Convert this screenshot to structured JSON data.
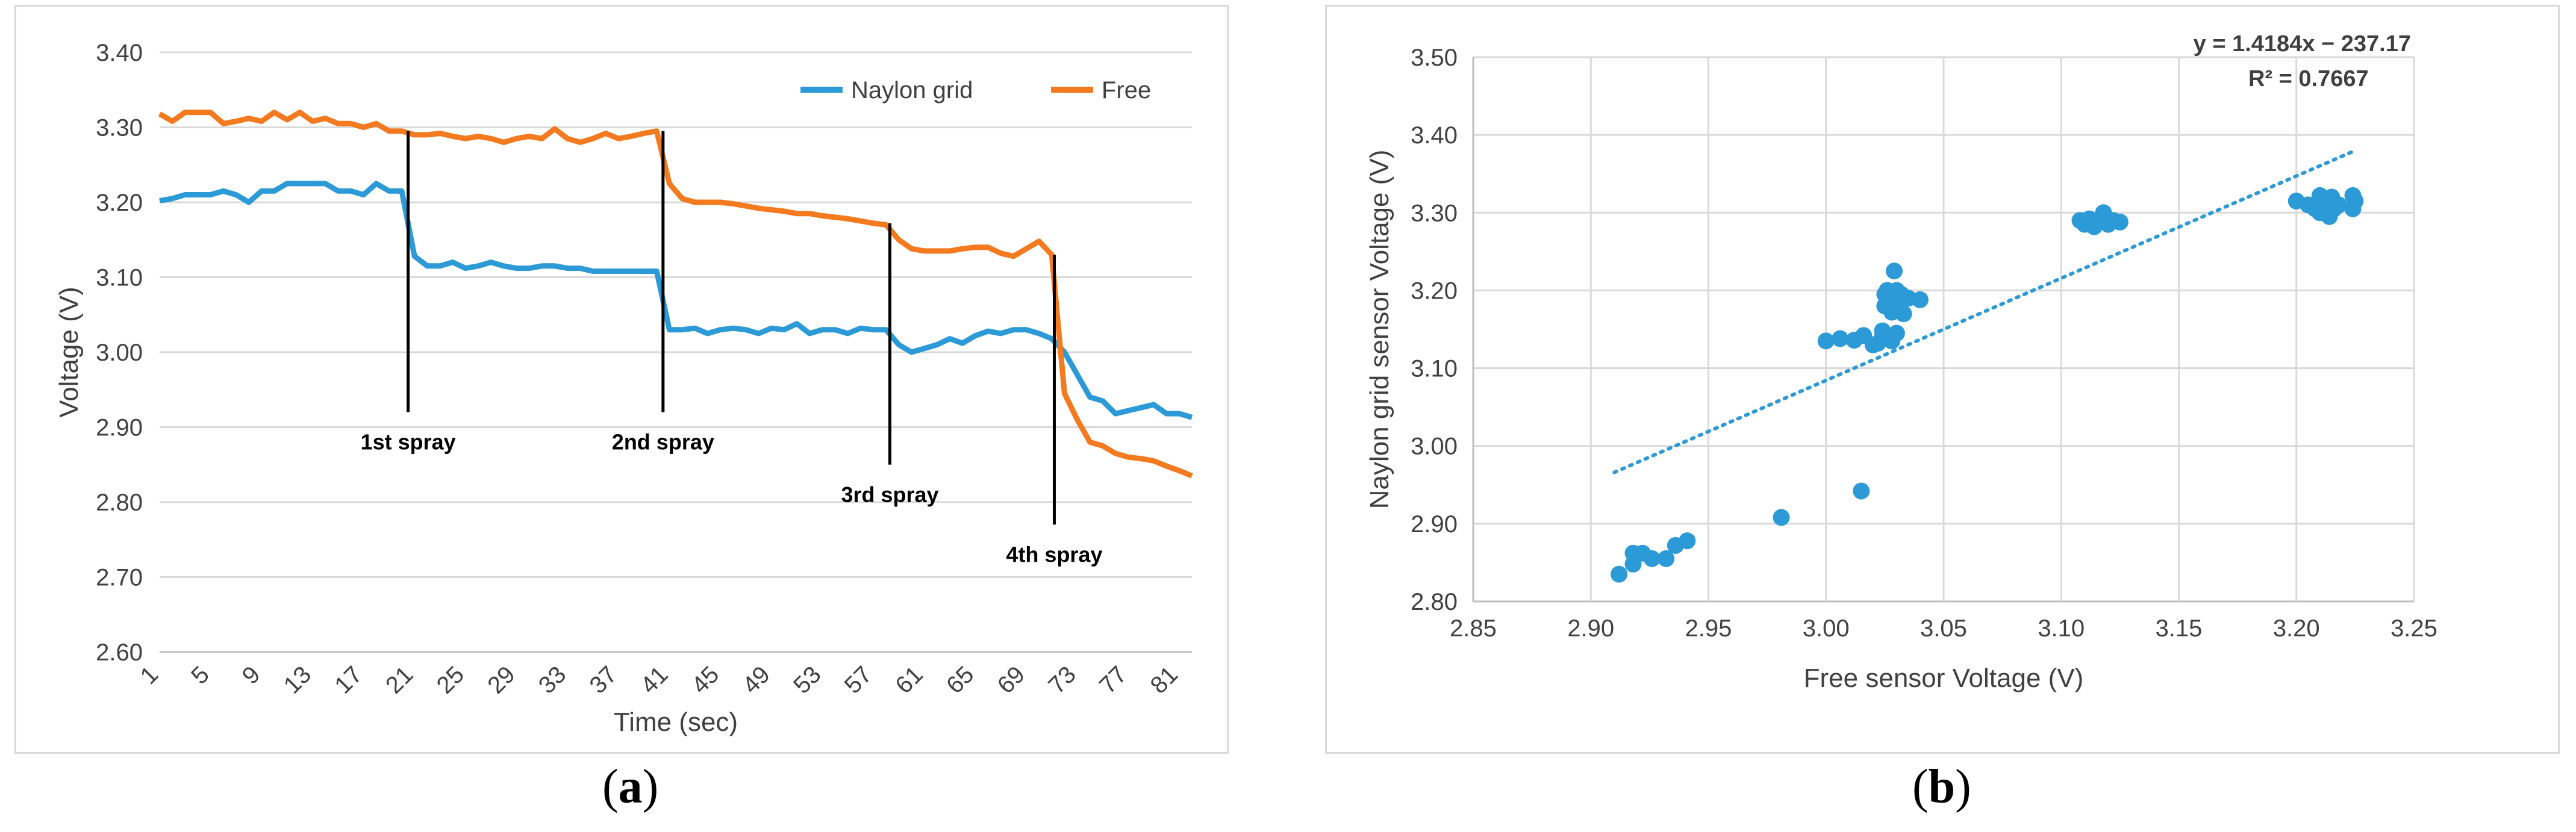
{
  "captions": {
    "a_open": "(",
    "a_letter": "a",
    "a_close": ")",
    "b_open": "(",
    "b_letter": "b",
    "b_close": ")"
  },
  "colors": {
    "naylon": "#2b9ad6",
    "free": "#f47a20",
    "grid": "#d9d9d9",
    "axis": "#bfbfbf",
    "text": "#404040"
  },
  "chart_data": [
    {
      "type": "line",
      "ylabel": "Voltage (V)",
      "xlabel": "Time (sec)",
      "ylim": [
        2.6,
        3.4
      ],
      "yticks": [
        2.6,
        2.7,
        2.8,
        2.9,
        3.0,
        3.1,
        3.2,
        3.3,
        3.4
      ],
      "ytick_labels": [
        "2.60",
        "2.70",
        "2.80",
        "2.90",
        "3.00",
        "3.10",
        "3.20",
        "3.30",
        "3.40"
      ],
      "xlim": [
        1,
        82
      ],
      "xticks": [
        1,
        5,
        9,
        13,
        17,
        21,
        25,
        29,
        33,
        37,
        41,
        45,
        49,
        53,
        57,
        61,
        65,
        69,
        73,
        77,
        81
      ],
      "xtick_labels": [
        "1",
        "5",
        "9",
        "13",
        "17",
        "21",
        "25",
        "29",
        "33",
        "37",
        "41",
        "45",
        "49",
        "53",
        "57",
        "61",
        "65",
        "69",
        "73",
        "77",
        "81"
      ],
      "legend": [
        "Naylon grid",
        "Free"
      ],
      "series": [
        {
          "name": "Naylon grid",
          "values": [
            3.202,
            3.205,
            3.21,
            3.21,
            3.21,
            3.215,
            3.21,
            3.2,
            3.215,
            3.215,
            3.225,
            3.225,
            3.225,
            3.225,
            3.215,
            3.215,
            3.21,
            3.225,
            3.215,
            3.215,
            3.128,
            3.115,
            3.115,
            3.12,
            3.112,
            3.115,
            3.12,
            3.115,
            3.112,
            3.112,
            3.115,
            3.115,
            3.112,
            3.112,
            3.108,
            3.108,
            3.108,
            3.108,
            3.108,
            3.108,
            3.03,
            3.03,
            3.032,
            3.025,
            3.03,
            3.032,
            3.03,
            3.025,
            3.032,
            3.03,
            3.038,
            3.025,
            3.03,
            3.03,
            3.025,
            3.032,
            3.03,
            3.03,
            3.01,
            3.0,
            3.005,
            3.01,
            3.018,
            3.012,
            3.022,
            3.028,
            3.025,
            3.03,
            3.03,
            3.025,
            3.018,
            3.0,
            2.97,
            2.94,
            2.935,
            2.918,
            2.922,
            2.926,
            2.93,
            2.918,
            2.918,
            2.913
          ]
        },
        {
          "name": "Free",
          "values": [
            3.318,
            3.308,
            3.32,
            3.32,
            3.32,
            3.305,
            3.308,
            3.312,
            3.308,
            3.32,
            3.31,
            3.32,
            3.308,
            3.312,
            3.305,
            3.305,
            3.3,
            3.305,
            3.295,
            3.295,
            3.29,
            3.29,
            3.292,
            3.288,
            3.285,
            3.288,
            3.285,
            3.28,
            3.285,
            3.288,
            3.285,
            3.298,
            3.285,
            3.28,
            3.285,
            3.292,
            3.285,
            3.288,
            3.292,
            3.295,
            3.225,
            3.205,
            3.2,
            3.2,
            3.2,
            3.198,
            3.195,
            3.192,
            3.19,
            3.188,
            3.185,
            3.185,
            3.182,
            3.18,
            3.178,
            3.175,
            3.172,
            3.17,
            3.15,
            3.138,
            3.135,
            3.135,
            3.135,
            3.138,
            3.14,
            3.14,
            3.132,
            3.128,
            3.138,
            3.148,
            3.13,
            2.945,
            2.91,
            2.88,
            2.875,
            2.865,
            2.86,
            2.858,
            2.855,
            2.848,
            2.842,
            2.835
          ]
        }
      ],
      "annotations": [
        {
          "label": "1st spray",
          "x": 20.5,
          "y_top": 3.295,
          "y_bottom": 2.92
        },
        {
          "label": "2nd spray",
          "x": 40.5,
          "y_top": 3.295,
          "y_bottom": 2.92
        },
        {
          "label": "3rd spray",
          "x": 58.3,
          "y_top": 3.172,
          "y_bottom": 2.85
        },
        {
          "label": "4th spray",
          "x": 71.2,
          "y_top": 3.13,
          "y_bottom": 2.77
        }
      ]
    },
    {
      "type": "scatter",
      "xlabel": "Free sensor Voltage (V)",
      "ylabel": "Naylon grid sensor Voltage (V)",
      "xlim": [
        2.85,
        3.25
      ],
      "ylim": [
        2.8,
        3.5
      ],
      "xticks": [
        2.85,
        2.9,
        2.95,
        3.0,
        3.05,
        3.1,
        3.15,
        3.2,
        3.25
      ],
      "xtick_labels": [
        "2.85",
        "2.90",
        "2.95",
        "3.00",
        "3.05",
        "3.10",
        "3.15",
        "3.20",
        "3.25"
      ],
      "yticks": [
        2.8,
        2.9,
        3.0,
        3.1,
        3.2,
        3.3,
        3.4,
        3.5
      ],
      "ytick_labels": [
        "2.80",
        "2.90",
        "3.00",
        "3.10",
        "3.20",
        "3.30",
        "3.40",
        "3.50"
      ],
      "equation": "y = 1.4184x − 237.17",
      "r_squared": "R² = 0.7667",
      "trendline": {
        "slope": 1.4184,
        "intercept": -237.17,
        "x_start": 2.91,
        "x_end": 3.225,
        "y_start": 2.966,
        "y_end": 3.38
      },
      "points": [
        [
          2.912,
          2.835
        ],
        [
          2.918,
          2.848
        ],
        [
          2.918,
          2.862
        ],
        [
          2.922,
          2.862
        ],
        [
          2.926,
          2.855
        ],
        [
          2.932,
          2.855
        ],
        [
          2.936,
          2.872
        ],
        [
          2.941,
          2.878
        ],
        [
          2.981,
          2.908
        ],
        [
          3.015,
          2.942
        ],
        [
          3.0,
          3.135
        ],
        [
          3.006,
          3.138
        ],
        [
          3.012,
          3.136
        ],
        [
          3.016,
          3.142
        ],
        [
          3.02,
          3.13
        ],
        [
          3.022,
          3.132
        ],
        [
          3.024,
          3.14
        ],
        [
          3.024,
          3.148
        ],
        [
          3.025,
          3.18
        ],
        [
          3.025,
          3.195
        ],
        [
          3.026,
          3.2
        ],
        [
          3.028,
          3.185
        ],
        [
          3.028,
          3.172
        ],
        [
          3.029,
          3.225
        ],
        [
          3.03,
          3.2
        ],
        [
          3.032,
          3.195
        ],
        [
          3.032,
          3.185
        ],
        [
          3.033,
          3.17
        ],
        [
          3.035,
          3.19
        ],
        [
          3.03,
          3.145
        ],
        [
          3.028,
          3.135
        ],
        [
          3.04,
          3.188
        ],
        [
          3.108,
          3.29
        ],
        [
          3.11,
          3.285
        ],
        [
          3.112,
          3.292
        ],
        [
          3.114,
          3.282
        ],
        [
          3.116,
          3.29
        ],
        [
          3.118,
          3.3
        ],
        [
          3.12,
          3.285
        ],
        [
          3.122,
          3.29
        ],
        [
          3.125,
          3.288
        ],
        [
          3.2,
          3.315
        ],
        [
          3.205,
          3.31
        ],
        [
          3.208,
          3.305
        ],
        [
          3.21,
          3.3
        ],
        [
          3.21,
          3.322
        ],
        [
          3.212,
          3.31
        ],
        [
          3.214,
          3.295
        ],
        [
          3.215,
          3.32
        ],
        [
          3.216,
          3.305
        ],
        [
          3.218,
          3.31
        ],
        [
          3.224,
          3.322
        ],
        [
          3.224,
          3.305
        ],
        [
          3.225,
          3.315
        ]
      ]
    }
  ]
}
